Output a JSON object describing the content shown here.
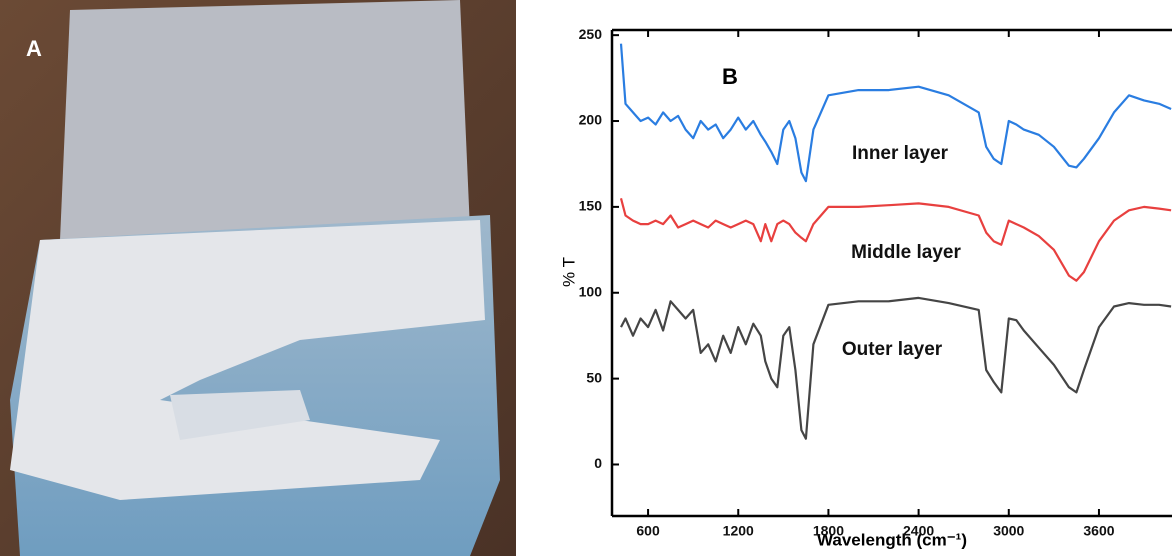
{
  "panel_a": {
    "label": "A"
  },
  "chart_data": {
    "type": "line",
    "panel_label": "B",
    "x_label": "Wavelength (cm⁻¹)",
    "y_label": "% T",
    "x": [
      420,
      450,
      500,
      550,
      600,
      650,
      700,
      750,
      800,
      850,
      900,
      950,
      1000,
      1050,
      1100,
      1150,
      1200,
      1250,
      1300,
      1350,
      1380,
      1420,
      1460,
      1500,
      1540,
      1580,
      1620,
      1650,
      1700,
      1800,
      2000,
      2200,
      2400,
      2600,
      2800,
      2850,
      2900,
      2950,
      3000,
      3050,
      3100,
      3200,
      3300,
      3400,
      3450,
      3500,
      3600,
      3700,
      3800,
      3900,
      4000,
      4080
    ],
    "series": [
      {
        "name": "Inner layer",
        "color": "#2a7de1",
        "values": [
          245,
          210,
          205,
          200,
          202,
          198,
          205,
          200,
          203,
          195,
          190,
          200,
          195,
          198,
          190,
          195,
          202,
          195,
          200,
          192,
          188,
          182,
          175,
          195,
          200,
          190,
          170,
          165,
          195,
          215,
          218,
          218,
          220,
          215,
          205,
          185,
          178,
          175,
          200,
          198,
          195,
          192,
          185,
          174,
          173,
          178,
          190,
          205,
          215,
          212,
          210,
          207
        ]
      },
      {
        "name": "Middle layer",
        "color": "#e8403f",
        "values": [
          155,
          145,
          142,
          140,
          140,
          142,
          140,
          145,
          138,
          140,
          142,
          140,
          138,
          142,
          140,
          138,
          140,
          142,
          140,
          130,
          140,
          130,
          140,
          142,
          140,
          135,
          132,
          130,
          140,
          150,
          150,
          151,
          152,
          150,
          145,
          135,
          130,
          128,
          142,
          140,
          138,
          133,
          125,
          110,
          107,
          112,
          130,
          142,
          148,
          150,
          149,
          148
        ]
      },
      {
        "name": "Outer layer",
        "color": "#454545",
        "values": [
          80,
          85,
          75,
          85,
          80,
          90,
          78,
          95,
          90,
          85,
          90,
          65,
          70,
          60,
          75,
          65,
          80,
          70,
          82,
          75,
          60,
          50,
          45,
          75,
          80,
          55,
          20,
          15,
          70,
          93,
          95,
          95,
          97,
          94,
          90,
          55,
          48,
          42,
          85,
          84,
          78,
          68,
          58,
          45,
          42,
          55,
          80,
          92,
          94,
          93,
          93,
          92
        ]
      }
    ],
    "xlim": [
      360,
      4086
    ],
    "ylim": [
      -30,
      253
    ],
    "xticks": [
      600,
      1200,
      1800,
      2400,
      3000,
      3600
    ],
    "yticks": [
      0,
      50,
      100,
      150,
      200,
      250
    ]
  }
}
